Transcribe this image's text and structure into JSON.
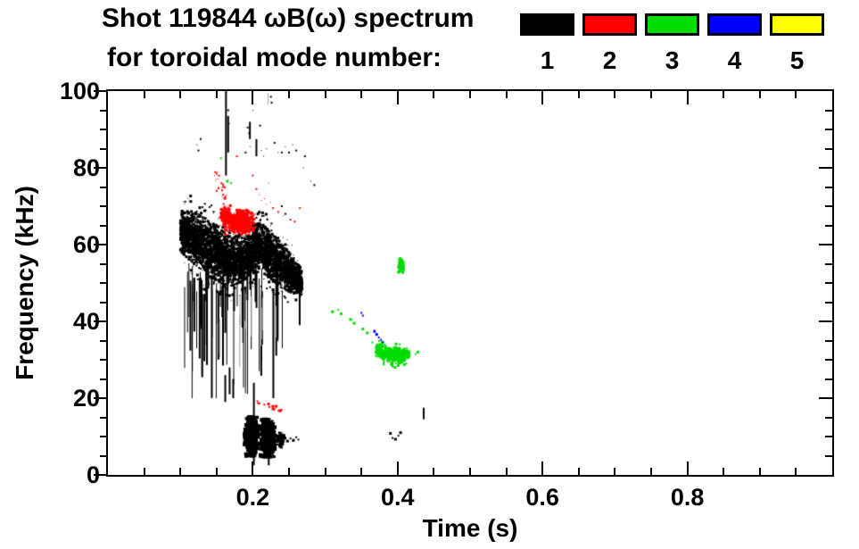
{
  "title": {
    "line1": "Shot 119844 ωB(ω) spectrum",
    "line2": "for toroidal mode number:"
  },
  "legend": {
    "items": [
      {
        "label": "1",
        "color": "#000000"
      },
      {
        "label": "2",
        "color": "#ff0000"
      },
      {
        "label": "3",
        "color": "#00dd00"
      },
      {
        "label": "4",
        "color": "#0000ff"
      },
      {
        "label": "5",
        "color": "#ffff00"
      }
    ]
  },
  "chart_data": {
    "type": "scatter",
    "title": "Shot 119844 ωB(ω) spectrum for toroidal mode number: 1 2 3 4 5",
    "xlabel": "Time (s)",
    "ylabel": "Frequency (kHz)",
    "xlim": [
      0,
      1.0
    ],
    "ylim": [
      0,
      100
    ],
    "grid": false,
    "legend_position": "top",
    "x_major_ticks": [
      {
        "value": 0.2,
        "label": "0.2"
      },
      {
        "value": 0.4,
        "label": "0.4"
      },
      {
        "value": 0.6,
        "label": "0.6"
      },
      {
        "value": 0.8,
        "label": "0.8"
      }
    ],
    "x_minor_step": 0.05,
    "y_major_ticks": [
      {
        "value": 0,
        "label": "0"
      },
      {
        "value": 20,
        "label": "20"
      },
      {
        "value": 40,
        "label": "40"
      },
      {
        "value": 60,
        "label": "60"
      },
      {
        "value": 80,
        "label": "80"
      },
      {
        "value": 100,
        "label": "100"
      }
    ],
    "y_minor_step": 5,
    "modes": [
      {
        "mode": 1,
        "color": "#000000"
      },
      {
        "mode": 2,
        "color": "#ff0000"
      },
      {
        "mode": 3,
        "color": "#00dd00"
      },
      {
        "mode": 4,
        "color": "#0000ff"
      },
      {
        "mode": 5,
        "color": "#ffff00"
      }
    ],
    "clusters": [
      {
        "id": "n1-main-band",
        "type": "band",
        "color": "#000000",
        "seed": 11,
        "n": 5200,
        "size": [
          1,
          3
        ],
        "path": [
          [
            0.1,
            63.0,
            4.0
          ],
          [
            0.112,
            62.5,
            5.5
          ],
          [
            0.125,
            61.0,
            6.0
          ],
          [
            0.14,
            59.0,
            6.2
          ],
          [
            0.155,
            57.0,
            6.0
          ],
          [
            0.17,
            55.5,
            5.5
          ],
          [
            0.185,
            56.5,
            5.2
          ],
          [
            0.2,
            58.8,
            5.4
          ],
          [
            0.212,
            59.3,
            5.4
          ],
          [
            0.225,
            57.0,
            5.2
          ],
          [
            0.24,
            54.5,
            5.0
          ],
          [
            0.255,
            52.0,
            4.0
          ],
          [
            0.268,
            50.2,
            2.8
          ]
        ]
      },
      {
        "id": "n1-streaks",
        "type": "streaks",
        "color": "#000000",
        "seed": 12,
        "n": 60,
        "t": [
          0.105,
          0.27
        ],
        "top": [
          47,
          57
        ],
        "len": [
          6,
          34
        ],
        "min_f": 20,
        "w": [
          1,
          2
        ]
      },
      {
        "id": "n1-gray-streaks",
        "type": "streaks",
        "color": "#9a9a9a",
        "seed": 13,
        "n": 10,
        "t": [
          0.15,
          0.26
        ],
        "top": [
          40,
          50
        ],
        "len": [
          8,
          22
        ],
        "min_f": 22,
        "w": [
          1,
          1
        ]
      },
      {
        "id": "n1-vlines",
        "type": "vlines",
        "color": "#000000",
        "w": 2,
        "lines": [
          [
            0.163,
            78,
            100
          ],
          [
            0.166,
            84,
            93.5
          ],
          [
            0.196,
            87.5,
            92
          ],
          [
            0.205,
            83,
            87.5
          ],
          [
            0.2015,
            14,
            24
          ],
          [
            0.2015,
            2.5,
            6
          ],
          [
            0.222,
            2.5,
            6
          ],
          [
            0.436,
            14.5,
            17.5
          ],
          [
            0.162,
            19,
            26
          ],
          [
            0.168,
            21,
            28
          ],
          [
            0.173,
            20,
            25
          ]
        ]
      },
      {
        "id": "n1-gray-vline",
        "type": "vlines",
        "color": "#aaaaaa",
        "w": 1,
        "lines": [
          [
            0.221,
            96.5,
            99.5
          ]
        ]
      },
      {
        "id": "n1-upper-speckles",
        "type": "dots",
        "color": "#000000",
        "size": [
          1,
          2
        ],
        "pts": [
          [
            0.123,
            86
          ],
          [
            0.125,
            84.5
          ],
          [
            0.128,
            87.5
          ],
          [
            0.166,
            95
          ],
          [
            0.168,
            91.5
          ],
          [
            0.193,
            90.5
          ],
          [
            0.195,
            89
          ],
          [
            0.2,
            95
          ],
          [
            0.205,
            86
          ],
          [
            0.21,
            91
          ],
          [
            0.212,
            84.5
          ],
          [
            0.215,
            83
          ],
          [
            0.219,
            85
          ],
          [
            0.225,
            98.5
          ],
          [
            0.226,
            97
          ],
          [
            0.23,
            86.5
          ],
          [
            0.235,
            84
          ],
          [
            0.24,
            84
          ],
          [
            0.245,
            85.5
          ],
          [
            0.25,
            84
          ],
          [
            0.255,
            86
          ],
          [
            0.26,
            84.5
          ],
          [
            0.27,
            80
          ],
          [
            0.272,
            83
          ],
          [
            0.28,
            76.5
          ],
          [
            0.285,
            75.5
          ],
          [
            0.2,
            66.5
          ],
          [
            0.205,
            67
          ],
          [
            0.21,
            66.2
          ],
          [
            0.215,
            67.5
          ],
          [
            0.22,
            66.5
          ],
          [
            0.24,
            70
          ],
          [
            0.245,
            68
          ],
          [
            0.19,
            84
          ],
          [
            0.196,
            85.5
          ]
        ]
      },
      {
        "id": "n1-low-lobe1",
        "type": "blob",
        "color": "#000000",
        "seed": 14,
        "n": 780,
        "cx": 0.198,
        "cy": 10.0,
        "rx": 0.0085,
        "ry": 4.6,
        "size": [
          2,
          4
        ]
      },
      {
        "id": "n1-low-lobe2",
        "type": "blob",
        "color": "#000000",
        "seed": 15,
        "n": 760,
        "cx": 0.2205,
        "cy": 9.6,
        "rx": 0.009,
        "ry": 4.4,
        "size": [
          2,
          4
        ]
      },
      {
        "id": "n1-low-tail",
        "type": "blob",
        "color": "#000000",
        "seed": 16,
        "n": 130,
        "cx": 0.238,
        "cy": 9.2,
        "rx": 0.006,
        "ry": 1.8,
        "size": [
          1,
          3
        ]
      },
      {
        "id": "n1-low-dots",
        "type": "dots",
        "color": "#000000",
        "size": [
          2,
          3
        ],
        "pts": [
          [
            0.252,
            9.5
          ],
          [
            0.256,
            9.0
          ],
          [
            0.26,
            9.8
          ],
          [
            0.263,
            9.2
          ],
          [
            0.248,
            8.8
          ],
          [
            0.39,
            10.8
          ],
          [
            0.393,
            9.6
          ],
          [
            0.397,
            9.3
          ],
          [
            0.401,
            10.2
          ],
          [
            0.404,
            11.0
          ]
        ]
      },
      {
        "id": "n2-blob",
        "type": "blob",
        "color": "#ff0000",
        "seed": 21,
        "n": 700,
        "cx": 0.182,
        "cy": 65.8,
        "rx": 0.018,
        "ry": 2.9,
        "size": [
          1,
          3
        ]
      },
      {
        "id": "n2-blob2",
        "type": "blob",
        "color": "#ff0000",
        "seed": 22,
        "n": 180,
        "cx": 0.163,
        "cy": 67.5,
        "rx": 0.007,
        "ry": 2.4,
        "size": [
          1,
          3
        ]
      },
      {
        "id": "n2-spray",
        "type": "trail",
        "color": "#ff0000",
        "seed": 23,
        "n": 26,
        "from": [
          0.147,
          79.5
        ],
        "to": [
          0.164,
          71.5
        ],
        "jitter": 1.3,
        "size": [
          1,
          2
        ]
      },
      {
        "id": "n2-scatter",
        "type": "dots",
        "color": "#ff0000",
        "size": [
          1,
          2
        ],
        "pts": [
          [
            0.205,
            74.5
          ],
          [
            0.209,
            73
          ],
          [
            0.212,
            71.5
          ],
          [
            0.216,
            72
          ],
          [
            0.219,
            70.5
          ],
          [
            0.224,
            71
          ],
          [
            0.228,
            69.5
          ],
          [
            0.235,
            68.5
          ],
          [
            0.242,
            67.5
          ],
          [
            0.252,
            66.5
          ],
          [
            0.258,
            66
          ],
          [
            0.222,
            76
          ],
          [
            0.2,
            78
          ],
          [
            0.265,
            69.5
          ],
          [
            0.178,
            83
          ],
          [
            0.153,
            75
          ],
          [
            0.15,
            74
          ]
        ]
      },
      {
        "id": "n2-low-arc",
        "type": "trail",
        "color": "#ff0000",
        "seed": 24,
        "n": 15,
        "from": [
          0.204,
          19.2
        ],
        "to": [
          0.24,
          16.6
        ],
        "jitter": 0.5,
        "size": [
          2,
          3
        ]
      },
      {
        "id": "n3-dots",
        "type": "dots",
        "color": "#00dd00",
        "size": [
          2,
          3
        ],
        "pts": [
          [
            0.156,
            82.5
          ],
          [
            0.165,
            76.5
          ],
          [
            0.17,
            76
          ],
          [
            0.31,
            42.5
          ],
          [
            0.318,
            43
          ],
          [
            0.322,
            42
          ],
          [
            0.335,
            40.5
          ],
          [
            0.34,
            39.5
          ],
          [
            0.352,
            38
          ],
          [
            0.358,
            37
          ],
          [
            0.365,
            34.5
          ],
          [
            0.425,
            31.5
          ],
          [
            0.428,
            32
          ]
        ]
      },
      {
        "id": "n3-upper",
        "type": "blob",
        "color": "#00dd00",
        "seed": 31,
        "n": 70,
        "cx": 0.405,
        "cy": 54.5,
        "rx": 0.0035,
        "ry": 1.7,
        "size": [
          2,
          3
        ]
      },
      {
        "id": "n3-band",
        "type": "band",
        "color": "#00dd00",
        "seed": 32,
        "n": 430,
        "size": [
          2,
          3
        ],
        "path": [
          [
            0.37,
            33.0,
            1.2
          ],
          [
            0.38,
            31.8,
            1.5
          ],
          [
            0.39,
            31.2,
            1.8
          ],
          [
            0.4,
            31.0,
            1.8
          ],
          [
            0.41,
            31.3,
            1.5
          ],
          [
            0.416,
            31.5,
            1.0
          ]
        ]
      },
      {
        "id": "n3-spikes",
        "type": "vlines",
        "color": "#00dd00",
        "w": 2,
        "lines": [
          [
            0.381,
            28.5,
            31
          ],
          [
            0.393,
            28,
            31
          ],
          [
            0.405,
            29,
            31.5
          ],
          [
            0.402,
            52.5,
            56.5
          ]
        ]
      },
      {
        "id": "n4-dots",
        "type": "dots",
        "color": "#0000ff",
        "size": [
          2,
          3
        ],
        "pts": [
          [
            0.35,
            42.2
          ],
          [
            0.352,
            41.5
          ],
          [
            0.368,
            37.4
          ],
          [
            0.371,
            36.6
          ],
          [
            0.374,
            35.8
          ],
          [
            0.377,
            35.2
          ],
          [
            0.38,
            34.6
          ]
        ]
      }
    ]
  }
}
